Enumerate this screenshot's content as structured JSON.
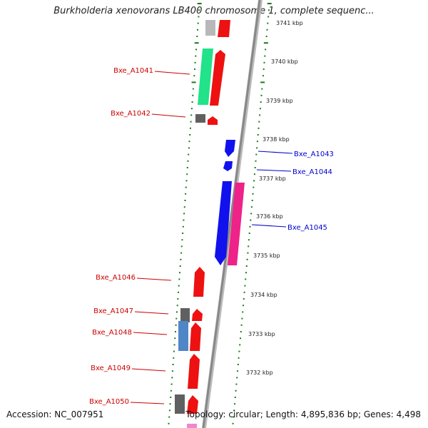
{
  "title": "Burkholderia xenovorans LB400 chromosome 1, complete sequenc...",
  "accession": "Accession: NC_007951",
  "topology": "Topology: circular; Length: 4,895,836 bp; Genes: 4,498",
  "colors": {
    "forward_label": "#cc0000",
    "reverse_label": "#0000cc",
    "ticks": "#1a7a1a",
    "backbone": "#888888"
  },
  "scale_labels": [
    "3741 kbp",
    "3740 kbp",
    "3739 kbp",
    "3738 kbp",
    "3737 kbp",
    "3736 kbp",
    "3735 kbp",
    "3734 kbp",
    "3733 kbp",
    "3732 kbp"
  ],
  "gene_labels": [
    "Bxe_A1041",
    "Bxe_A1042",
    "Bxe_A1043",
    "Bxe_A1044",
    "Bxe_A1045",
    "Bxe_A1046",
    "Bxe_A1047",
    "Bxe_A1048",
    "Bxe_A1049",
    "Bxe_A1050"
  ]
}
